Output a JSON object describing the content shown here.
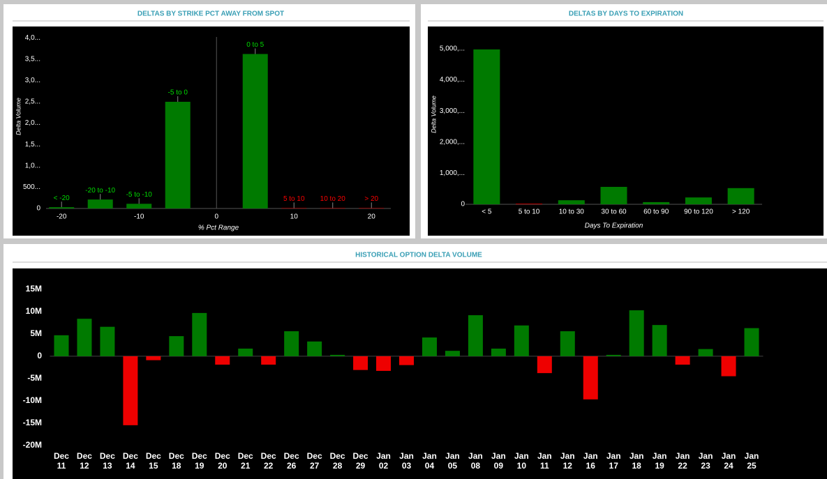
{
  "chart_data": [
    {
      "type": "bar_x",
      "title": "DELTAS BY STRIKE PCT AWAY FROM SPOT",
      "y_label": "Delta Volume",
      "x_label": "% Pct Range",
      "x": [
        -20,
        -15,
        -10,
        -5,
        5,
        10,
        15,
        20
      ],
      "values": [
        30000,
        210000,
        110000,
        2500000,
        3620000,
        10000,
        10000,
        10000
      ],
      "bar_labels": [
        "< -20",
        "-20 to -10",
        "-5 to -10",
        "-5 to 0",
        "0 to 5",
        "5 to 10",
        "10 to 20",
        "> 20"
      ],
      "colors": [
        "#007a00",
        "#007a00",
        "#007a00",
        "#007a00",
        "#007a00",
        "#cc0000",
        "#cc0000",
        "#cc0000"
      ],
      "xlim": [
        -22,
        22.5
      ],
      "xticks": [
        -20,
        -10,
        0,
        10,
        20
      ],
      "ylim": [
        0,
        4150000
      ],
      "yticks": [
        0,
        {
          "value": 500000,
          "label": "500..."
        },
        {
          "value": 1000000,
          "label": "1,0..."
        },
        {
          "value": 1500000,
          "label": "1,5..."
        },
        {
          "value": 2000000,
          "label": "2,0..."
        },
        {
          "value": 2500000,
          "label": "2,5..."
        },
        {
          "value": 3000000,
          "label": "3,0..."
        },
        {
          "value": 3500000,
          "label": "3,5..."
        },
        {
          "value": 4000000,
          "label": "4,0..."
        }
      ]
    },
    {
      "type": "bar",
      "title": "DELTAS BY DAYS TO EXPIRATION",
      "y_label": "Delta Volume",
      "x_label": "Days To Expiration",
      "categories": [
        "< 5",
        "5 to 10",
        "10 to 30",
        "30 to 60",
        "60 to 90",
        "90 to 120",
        "> 120"
      ],
      "values": [
        4980000,
        20000,
        130000,
        560000,
        70000,
        220000,
        520000
      ],
      "colors": [
        "#007a00",
        "#cc0000",
        "#007a00",
        "#007a00",
        "#007a00",
        "#007a00",
        "#007a00"
      ],
      "ylim": [
        0,
        5560000
      ],
      "yticks": [
        0,
        {
          "value": 1000000,
          "label": "1,000,..."
        },
        {
          "value": 2000000,
          "label": "2,000,..."
        },
        {
          "value": 3000000,
          "label": "3,000,..."
        },
        {
          "value": 4000000,
          "label": "4,000,..."
        },
        {
          "value": 5000000,
          "label": "5,000,..."
        }
      ]
    },
    {
      "type": "bar_signed",
      "title": "HISTORICAL OPTION DELTA VOLUME",
      "categories": [
        "Dec 11",
        "Dec 12",
        "Dec 13",
        "Dec 14",
        "Dec 15",
        "Dec 18",
        "Dec 19",
        "Dec 20",
        "Dec 21",
        "Dec 22",
        "Dec 26",
        "Dec 27",
        "Dec 28",
        "Dec 29",
        "Jan 02",
        "Jan 03",
        "Jan 04",
        "Jan 05",
        "Jan 08",
        "Jan 09",
        "Jan 10",
        "Jan 11",
        "Jan 12",
        "Jan 16",
        "Jan 17",
        "Jan 18",
        "Jan 19",
        "Jan 22",
        "Jan 23",
        "Jan 24",
        "Jan 25"
      ],
      "values": [
        4700000,
        8400000,
        6600000,
        -15500000,
        -900000,
        4500000,
        9700000,
        -1900000,
        1700000,
        -1900000,
        5600000,
        3300000,
        300000,
        -3100000,
        -3300000,
        -2000000,
        4200000,
        1200000,
        9200000,
        1700000,
        6900000,
        -3800000,
        5600000,
        -9700000,
        300000,
        10300000,
        7000000,
        -1900000,
        1600000,
        -4500000,
        6300000
      ],
      "color": "#007a00",
      "negative_color": "#ee0000",
      "ylim": [
        -21000000,
        19700000
      ],
      "yticks": [
        {
          "value": -20000000,
          "label": "-20M"
        },
        {
          "value": -15000000,
          "label": "-15M"
        },
        {
          "value": -10000000,
          "label": "-10M"
        },
        {
          "value": -5000000,
          "label": "-5M"
        },
        0,
        {
          "value": 5000000,
          "label": "5M"
        },
        {
          "value": 10000000,
          "label": "10M"
        },
        {
          "value": 15000000,
          "label": "15M"
        }
      ]
    }
  ]
}
